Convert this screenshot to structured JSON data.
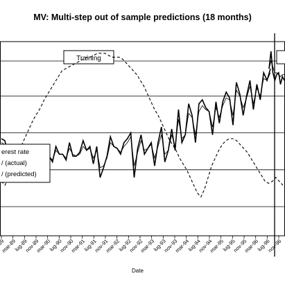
{
  "chart_data": {
    "type": "line",
    "title": "MV: Multi-step out of sample predictions (18 months)",
    "xlabel": "Date",
    "ylabel": "",
    "annotations": {
      "training_label": "Training",
      "test_label": ""
    },
    "legend": {
      "placement": "left",
      "entries": [
        "erest rate",
        "/ (actual)",
        "/ (predicted)"
      ]
    },
    "x_tick_labels": [
      "nov-89",
      "mar-89",
      "lug-89",
      "nov-89",
      "mar-90",
      "lug-90",
      "nov-90",
      "mar-91",
      "lug-91",
      "nov-91",
      "mar-92",
      "lug-92",
      "nov-92",
      "mar-93",
      "lug-93",
      "nov-93",
      "mar-94",
      "lug-94",
      "nov-94",
      "mar-95",
      "lug-95",
      "nov-95",
      "mar-96",
      "lug-96",
      "nov-96"
    ],
    "interest_rate": [
      0.28,
      0.26,
      0.3,
      0.34,
      0.38,
      0.43,
      0.48,
      0.52,
      0.56,
      0.6,
      0.63,
      0.66,
      0.7,
      0.73,
      0.76,
      0.79,
      0.82,
      0.85,
      0.86,
      0.87,
      0.88,
      0.89,
      0.9,
      0.91,
      0.92,
      0.92,
      0.93,
      0.94,
      0.94,
      0.94,
      0.93,
      0.92,
      0.92,
      0.92,
      0.91,
      0.89,
      0.87,
      0.85,
      0.83,
      0.8,
      0.77,
      0.73,
      0.69,
      0.65,
      0.62,
      0.58,
      0.54,
      0.5,
      0.47,
      0.44,
      0.4,
      0.37,
      0.34,
      0.3,
      0.26,
      0.22,
      0.2,
      0.24,
      0.3,
      0.36,
      0.4,
      0.44,
      0.47,
      0.49,
      0.5,
      0.5,
      0.49,
      0.47,
      0.45,
      0.43,
      0.4,
      0.37,
      0.34,
      0.31,
      0.28,
      0.27,
      0.28,
      0.3,
      0.28,
      0.26
    ],
    "actual": [
      0.5,
      0.49,
      0.42,
      0.45,
      0.42,
      0.37,
      0.43,
      0.45,
      0.4,
      0.31,
      0.4,
      0.42,
      0.38,
      0.44,
      0.41,
      0.38,
      0.46,
      0.42,
      0.42,
      0.39,
      0.48,
      0.41,
      0.41,
      0.43,
      0.49,
      0.44,
      0.46,
      0.37,
      0.46,
      0.3,
      0.35,
      0.41,
      0.51,
      0.46,
      0.45,
      0.42,
      0.48,
      0.5,
      0.53,
      0.3,
      0.45,
      0.52,
      0.42,
      0.45,
      0.48,
      0.36,
      0.48,
      0.56,
      0.38,
      0.44,
      0.55,
      0.44,
      0.65,
      0.48,
      0.52,
      0.68,
      0.62,
      0.48,
      0.68,
      0.7,
      0.66,
      0.64,
      0.52,
      0.69,
      0.58,
      0.69,
      0.74,
      0.71,
      0.57,
      0.79,
      0.73,
      0.62,
      0.72,
      0.8,
      0.65,
      0.78,
      0.7,
      0.84,
      0.8,
      0.86
    ],
    "predicted": [
      0.48,
      0.47,
      0.44,
      0.44,
      0.42,
      0.4,
      0.42,
      0.43,
      0.41,
      0.36,
      0.39,
      0.41,
      0.39,
      0.42,
      0.41,
      0.39,
      0.44,
      0.42,
      0.42,
      0.4,
      0.45,
      0.42,
      0.41,
      0.42,
      0.46,
      0.44,
      0.45,
      0.4,
      0.44,
      0.35,
      0.36,
      0.4,
      0.48,
      0.46,
      0.45,
      0.43,
      0.46,
      0.48,
      0.51,
      0.36,
      0.43,
      0.49,
      0.44,
      0.45,
      0.47,
      0.4,
      0.46,
      0.52,
      0.42,
      0.44,
      0.52,
      0.46,
      0.6,
      0.5,
      0.52,
      0.63,
      0.61,
      0.52,
      0.64,
      0.67,
      0.65,
      0.64,
      0.56,
      0.66,
      0.61,
      0.67,
      0.71,
      0.7,
      0.62,
      0.75,
      0.72,
      0.66,
      0.71,
      0.77,
      0.68,
      0.76,
      0.72,
      0.81,
      0.8,
      0.84
    ],
    "forecast_actual": [
      0.86,
      0.95,
      0.84,
      0.8,
      0.83,
      0.84,
      0.78,
      0.82,
      0.8
    ],
    "forecast_predicted": [
      0.86,
      0.9,
      0.87,
      0.84,
      0.84,
      0.83,
      0.82,
      0.83,
      0.83
    ],
    "ylim": [
      0,
      1
    ],
    "grid": "horizontal"
  }
}
